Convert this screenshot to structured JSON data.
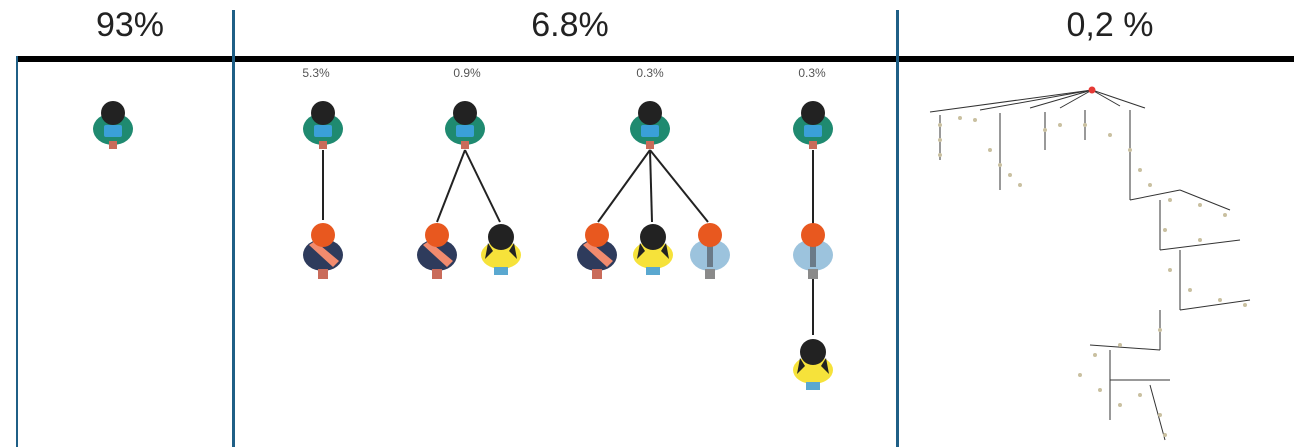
{
  "columns": [
    {
      "percent": "93%",
      "groups": [
        {
          "people": 1
        }
      ]
    },
    {
      "percent": "6.8%",
      "groups": [
        {
          "label": "5.3%",
          "children": [
            "orange-shirt"
          ]
        },
        {
          "label": "0.9%",
          "children": [
            "orange-shirt",
            "yellow-shirt"
          ]
        },
        {
          "label": "0.3%",
          "children": [
            "orange-shirt",
            "yellow-shirt",
            "lightblue-shirt"
          ]
        },
        {
          "label": "0.3%",
          "children": [
            "lightblue-shirt"
          ],
          "grandchild": "yellow-shirt"
        }
      ]
    },
    {
      "percent": "0,2 %",
      "illustration": "large-branching-tree"
    }
  ],
  "colors": {
    "divider": "#1f5f86",
    "root_node": "#e53935",
    "green_shirt": "#1f8a70",
    "orange_shirt": "#e8581f",
    "yellow_shirt": "#f6e23a",
    "lightblue_shirt": "#9cc3dd"
  }
}
